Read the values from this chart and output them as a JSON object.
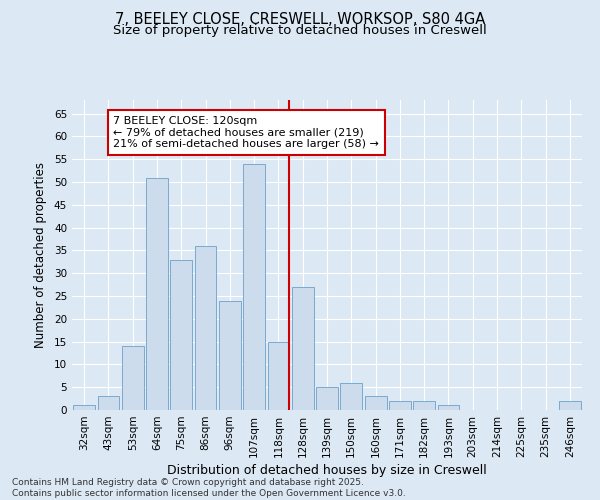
{
  "title1": "7, BEELEY CLOSE, CRESWELL, WORKSOP, S80 4GA",
  "title2": "Size of property relative to detached houses in Creswell",
  "xlabel": "Distribution of detached houses by size in Creswell",
  "ylabel": "Number of detached properties",
  "categories": [
    "32sqm",
    "43sqm",
    "53sqm",
    "64sqm",
    "75sqm",
    "86sqm",
    "96sqm",
    "107sqm",
    "118sqm",
    "128sqm",
    "139sqm",
    "150sqm",
    "160sqm",
    "171sqm",
    "182sqm",
    "193sqm",
    "203sqm",
    "214sqm",
    "225sqm",
    "235sqm",
    "246sqm"
  ],
  "values": [
    1,
    3,
    14,
    51,
    33,
    36,
    24,
    54,
    15,
    27,
    5,
    6,
    3,
    2,
    2,
    1,
    0,
    0,
    0,
    0,
    2
  ],
  "bar_color": "#ccdcec",
  "bar_edge_color": "#7aaace",
  "highlight_index": 8,
  "red_line_color": "#cc0000",
  "annotation_text": "7 BEELEY CLOSE: 120sqm\n← 79% of detached houses are smaller (219)\n21% of semi-detached houses are larger (58) →",
  "annotation_box_color": "#ffffff",
  "annotation_box_edge": "#cc0000",
  "ylim": [
    0,
    68
  ],
  "yticks": [
    0,
    5,
    10,
    15,
    20,
    25,
    30,
    35,
    40,
    45,
    50,
    55,
    60,
    65
  ],
  "background_color": "#dce8f4",
  "grid_color": "#ffffff",
  "footnote": "Contains HM Land Registry data © Crown copyright and database right 2025.\nContains public sector information licensed under the Open Government Licence v3.0.",
  "title1_fontsize": 10.5,
  "title2_fontsize": 9.5,
  "xlabel_fontsize": 9,
  "ylabel_fontsize": 8.5,
  "tick_fontsize": 7.5,
  "annotation_fontsize": 8,
  "footnote_fontsize": 6.5
}
